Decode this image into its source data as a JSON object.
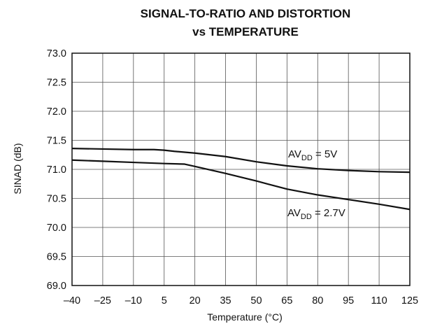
{
  "chart_data": {
    "type": "line",
    "title_line1": "SIGNAL-TO-RATIO AND DISTORTION",
    "title_line2": "vs TEMPERATURE",
    "xlabel": "Temperature (°C)",
    "ylabel": "SINAD (dB)",
    "xlim": [
      -40,
      125
    ],
    "ylim": [
      69.0,
      73.0
    ],
    "x_ticks": [
      -40,
      -25,
      -10,
      5,
      20,
      35,
      50,
      65,
      80,
      95,
      110,
      125
    ],
    "x_tick_labels": [
      "–40",
      "–25",
      "–10",
      "5",
      "20",
      "35",
      "50",
      "65",
      "80",
      "95",
      "110",
      "125"
    ],
    "y_ticks": [
      69.0,
      69.5,
      70.0,
      70.5,
      71.0,
      71.5,
      72.0,
      72.5,
      73.0
    ],
    "y_tick_labels": [
      "69.0",
      "69.5",
      "70.0",
      "70.5",
      "71.0",
      "71.5",
      "72.0",
      "72.5",
      "73.0"
    ],
    "grid": true,
    "series": [
      {
        "name": "AV_DD = 5V",
        "annotation": {
          "prefix": "AV",
          "sub": "DD",
          "suffix": " = 5V"
        },
        "x": [
          -40,
          -25,
          -10,
          0,
          5,
          10,
          20,
          35,
          50,
          65,
          80,
          95,
          110,
          125
        ],
        "y": [
          71.36,
          71.35,
          71.34,
          71.34,
          71.33,
          71.31,
          71.28,
          71.22,
          71.13,
          71.06,
          71.01,
          70.98,
          70.96,
          70.95
        ]
      },
      {
        "name": "AV_DD = 2.7V",
        "annotation": {
          "prefix": "AV",
          "sub": "DD",
          "suffix": " = 2.7V"
        },
        "x": [
          -40,
          -25,
          -10,
          5,
          15,
          20,
          35,
          50,
          65,
          80,
          95,
          110,
          125
        ],
        "y": [
          71.16,
          71.14,
          71.12,
          71.1,
          71.09,
          71.05,
          70.93,
          70.8,
          70.66,
          70.56,
          70.48,
          70.4,
          70.31
        ]
      }
    ]
  }
}
